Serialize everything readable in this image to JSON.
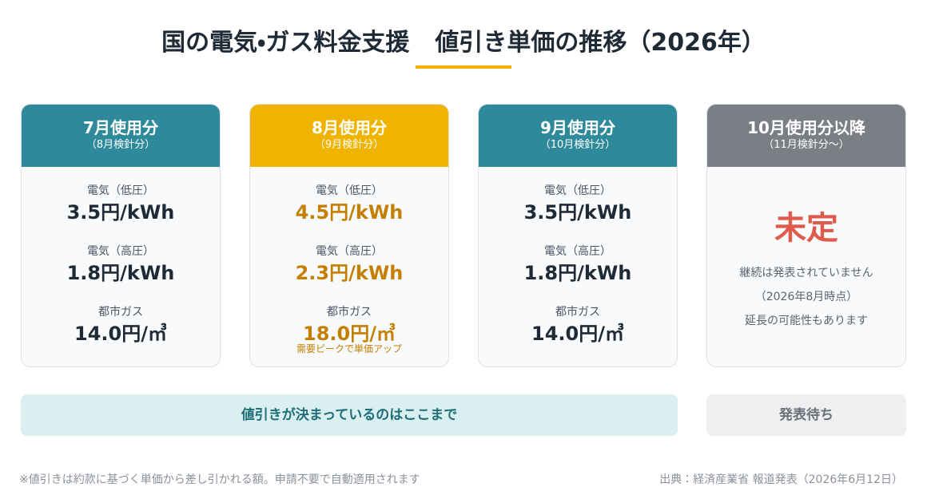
{
  "header": {
    "title_main": "国の電気・ガス料金支援",
    "title_sub": "値引き単価の推移（2026年）"
  },
  "cards": [
    {
      "month": "7月使用分",
      "reading": "（8月検針分）",
      "color": "#2e8a9b",
      "highlight": false,
      "items": [
        {
          "label": "電気（低圧）",
          "value": "3.5円/kWh"
        },
        {
          "label": "電気（高圧）",
          "value": "1.8円/kWh"
        },
        {
          "label": "都市ガス",
          "value": "14.0円/㎥"
        }
      ]
    },
    {
      "month": "8月使用分",
      "reading": "（9月検針分）",
      "color": "#f0b400",
      "highlight": true,
      "items": [
        {
          "label": "電気（低圧）",
          "value": "4.5円/kWh"
        },
        {
          "label": "電気（高圧）",
          "value": "2.3円/kWh"
        },
        {
          "label": "都市ガス",
          "value": "18.0円/㎥",
          "note": "需要ピークで単価アップ"
        }
      ]
    },
    {
      "month": "9月使用分",
      "reading": "（10月検針分）",
      "color": "#2e8a9b",
      "highlight": false,
      "items": [
        {
          "label": "電気（低圧）",
          "value": "3.5円/kWh"
        },
        {
          "label": "電気（高圧）",
          "value": "1.8円/kWh"
        },
        {
          "label": "都市ガス",
          "value": "14.0円/㎥"
        }
      ]
    },
    {
      "month": "10月使用分以降",
      "reading": "（11月検針分〜）",
      "color": "#7a7f86",
      "highlight": false,
      "status": "未定",
      "notes": [
        "継続は発表されていません",
        "（2026年8月時点）",
        "延長の可能性もあります"
      ]
    }
  ],
  "bands": {
    "decided": "値引きが決まっているのはここまで",
    "pending": "発表待ち"
  },
  "footer": {
    "note": "※値引きは約款に基づく単価から差し引かれる額。申請不要で自動適用されます",
    "source": "出典：経済産業省 報道発表（2026年6月12日）"
  }
}
